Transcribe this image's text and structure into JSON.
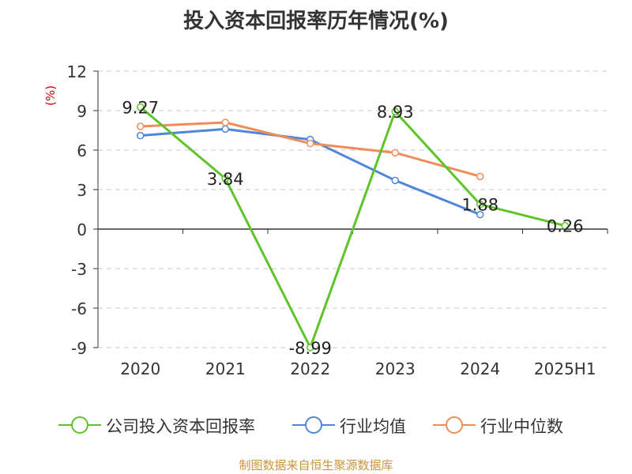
{
  "chart_data": {
    "type": "line",
    "title": "投入资本回报率历年情况(%)",
    "ylabel": "(%)",
    "xlabel": "",
    "categories": [
      "2020",
      "2021",
      "2022",
      "2023",
      "2024",
      "2025H1"
    ],
    "ylim": [
      -9,
      12
    ],
    "yticks": [
      12,
      9,
      6,
      3,
      0,
      -3,
      -6,
      -9
    ],
    "grid": true,
    "legend_position": "bottom",
    "series": [
      {
        "name": "公司投入资本回报率",
        "color": "#5dc429",
        "values": [
          9.27,
          3.84,
          -8.99,
          8.93,
          1.88,
          0.26
        ],
        "labels": [
          "9.27",
          "3.84",
          "-8.99",
          "8.93",
          "1.88",
          "0.26"
        ]
      },
      {
        "name": "行业均值",
        "color": "#4f86d9",
        "values": [
          7.1,
          7.6,
          6.8,
          3.7,
          1.1,
          null
        ]
      },
      {
        "name": "行业中位数",
        "color": "#f08c5a",
        "values": [
          7.8,
          8.1,
          6.5,
          5.8,
          4.0,
          null
        ]
      }
    ]
  },
  "source": "制图数据来自恒生聚源数据库"
}
